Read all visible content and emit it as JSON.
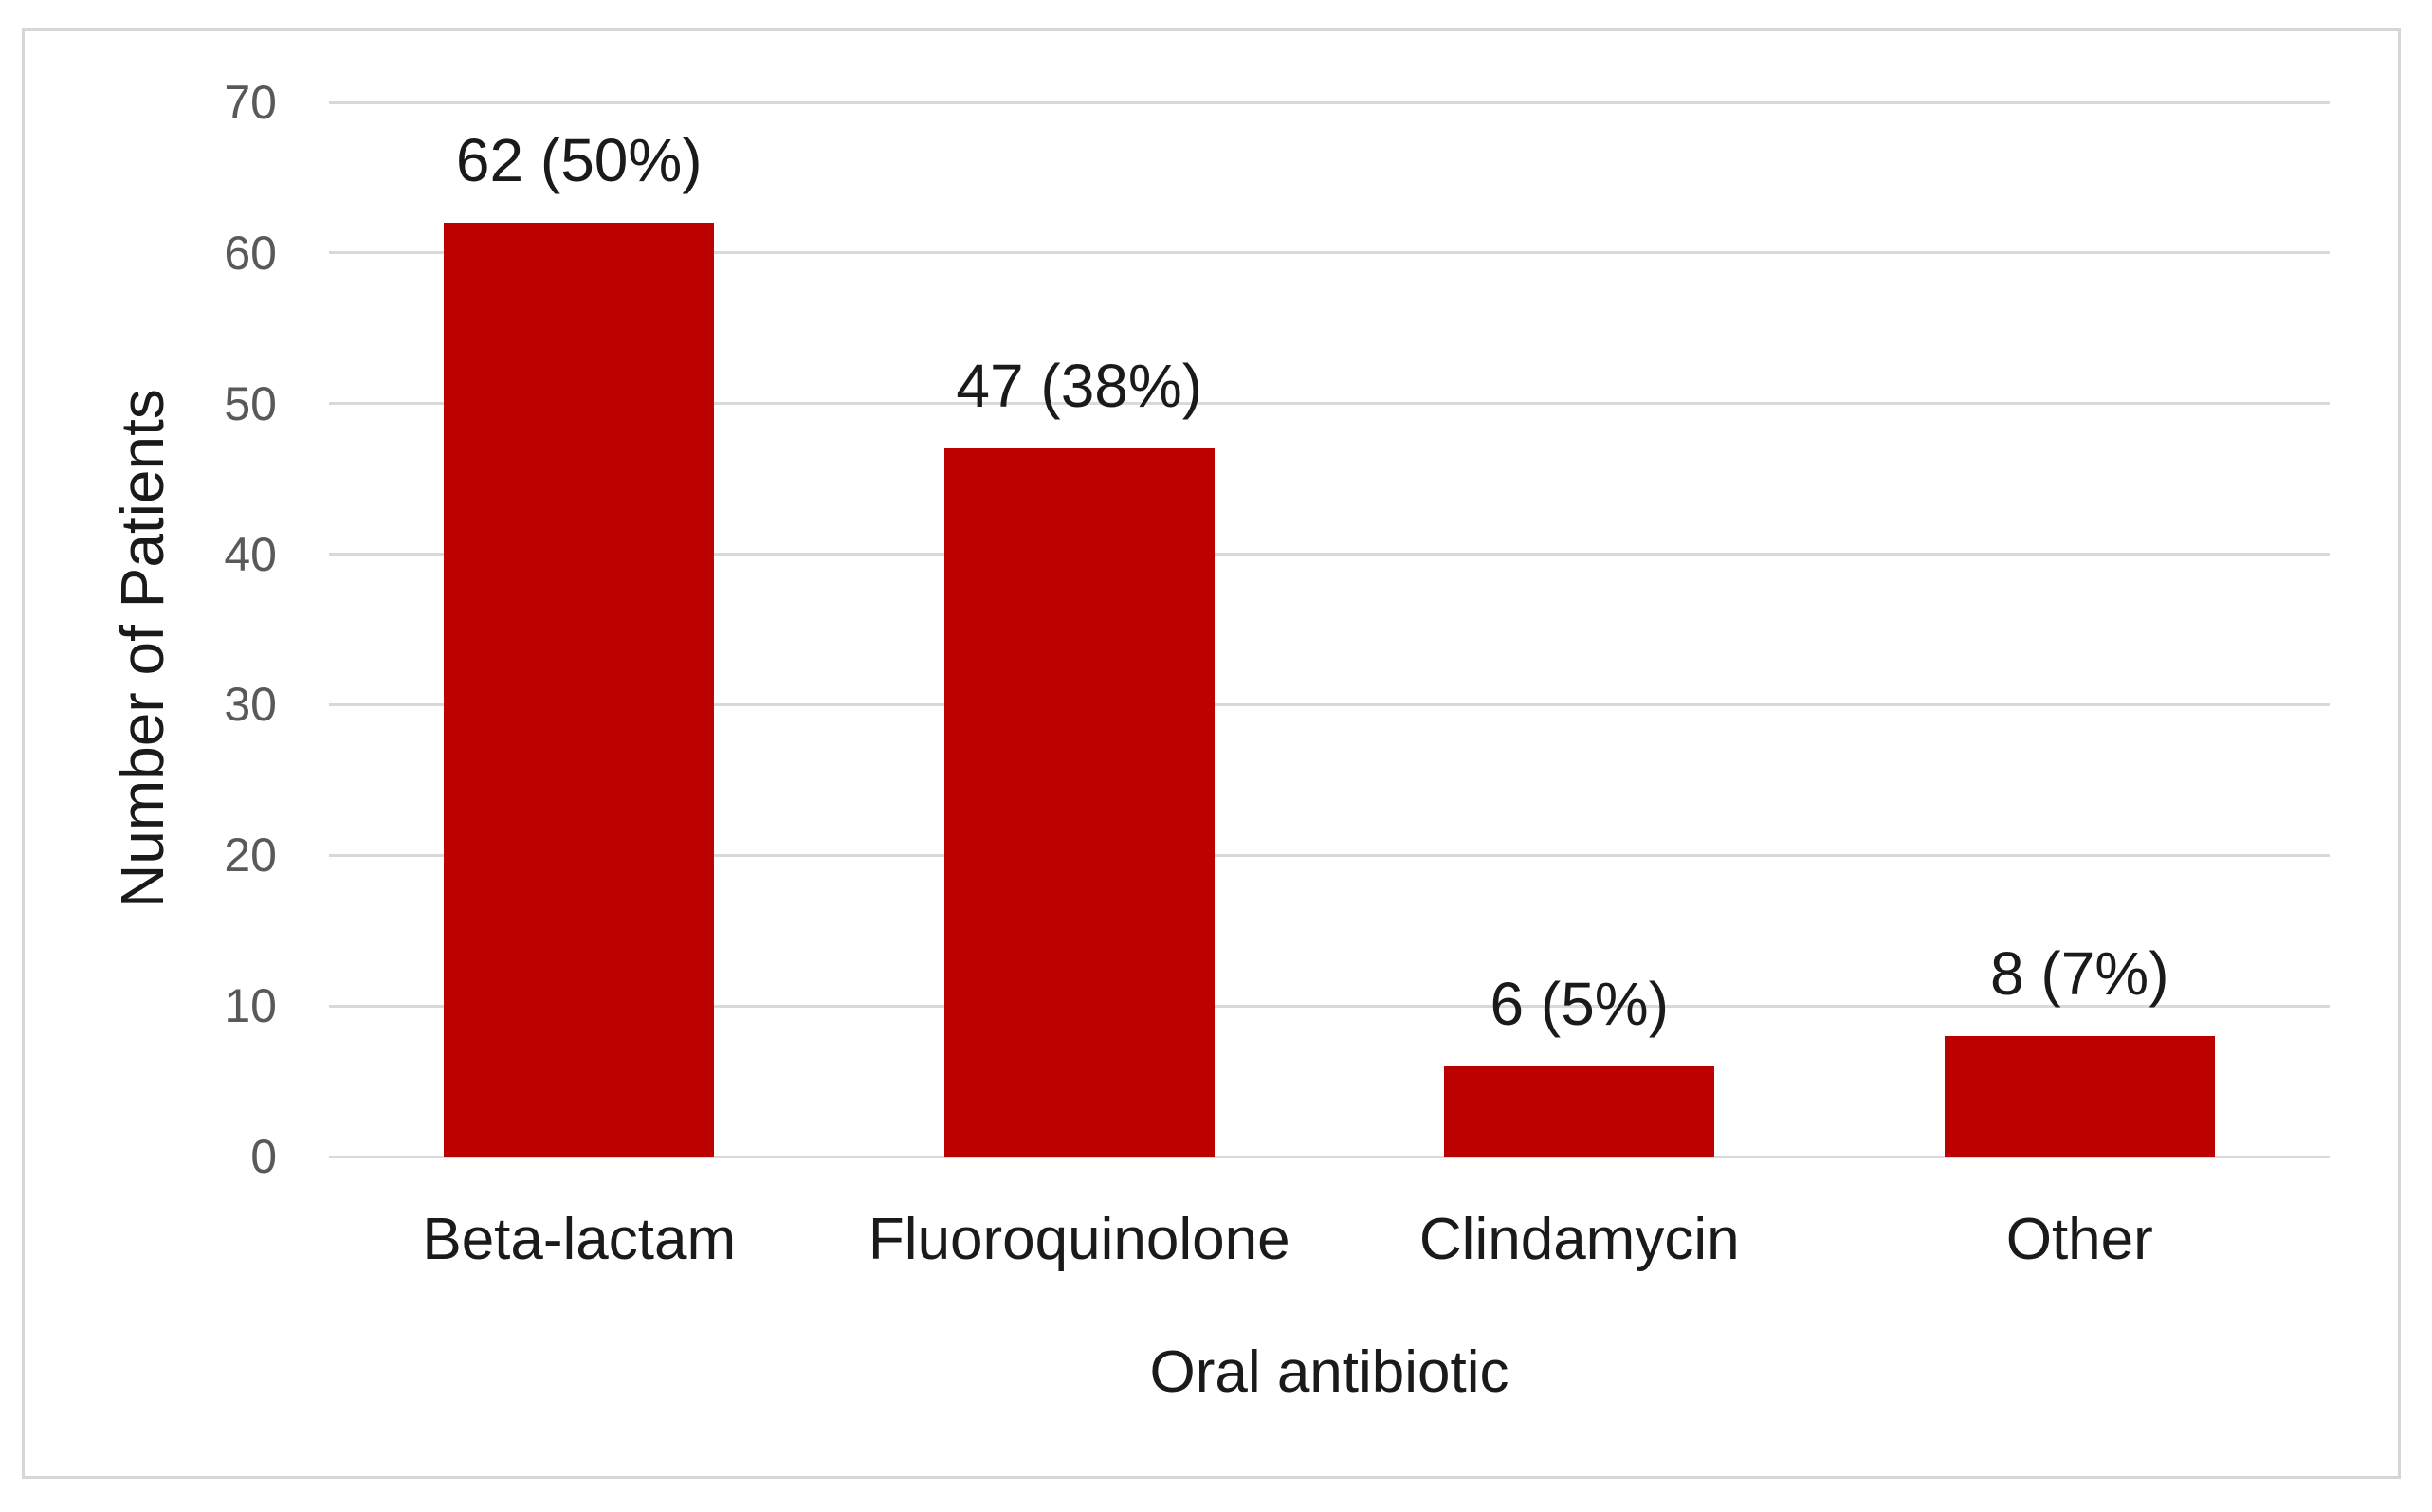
{
  "chart_data": {
    "type": "bar",
    "categories": [
      "Beta-lactam",
      "Fluoroquinolone",
      "Clindamycin",
      "Other"
    ],
    "values": [
      62,
      47,
      6,
      8
    ],
    "bar_labels": [
      "62 (50%)",
      "47 (38%)",
      "6 (5%)",
      "8 (7%)"
    ],
    "xlabel": "Oral antibiotic",
    "ylabel": "Number of Patients",
    "ylim": [
      0,
      70
    ],
    "yticks": [
      0,
      10,
      20,
      30,
      40,
      50,
      60,
      70
    ],
    "grid": "horizontal",
    "legend": "none",
    "colors": {
      "bar": "#bc0101",
      "gridline": "#d9d9d9",
      "tick_text": "#595959",
      "label_text": "#1a1a1a",
      "frame_border": "#d6d6d6",
      "background": "#ffffff"
    }
  }
}
